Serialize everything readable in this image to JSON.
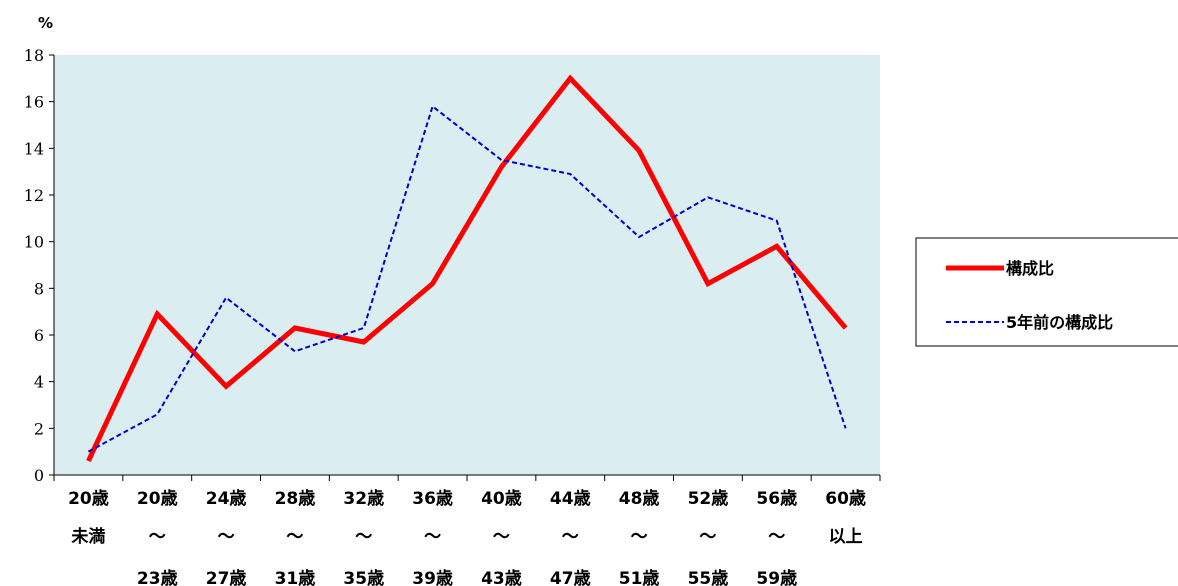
{
  "chart_data": {
    "type": "line",
    "ylabel": "%",
    "ylim": [
      0,
      18
    ],
    "yticks": [
      "0",
      "2",
      "4",
      "6",
      "8",
      "10",
      "12",
      "14",
      "16",
      "18"
    ],
    "categories": [
      [
        "20歳",
        "未満",
        ""
      ],
      [
        "20歳",
        "〜",
        "23歳"
      ],
      [
        "24歳",
        "〜",
        "27歳"
      ],
      [
        "28歳",
        "〜",
        "31歳"
      ],
      [
        "32歳",
        "〜",
        "35歳"
      ],
      [
        "36歳",
        "〜",
        "39歳"
      ],
      [
        "40歳",
        "〜",
        "43歳"
      ],
      [
        "44歳",
        "〜",
        "47歳"
      ],
      [
        "48歳",
        "〜",
        "51歳"
      ],
      [
        "52歳",
        "〜",
        "55歳"
      ],
      [
        "56歳",
        "〜",
        "59歳"
      ],
      [
        "60歳",
        "以上",
        ""
      ]
    ],
    "series": [
      {
        "name": "構成比",
        "color": "#ff0000",
        "style": "solid",
        "values": [
          0.6,
          6.9,
          3.8,
          6.3,
          5.7,
          8.2,
          13.2,
          17.0,
          13.9,
          8.2,
          9.8,
          6.3
        ]
      },
      {
        "name": "5年前の構成比",
        "color": "#0000cc",
        "style": "dashed",
        "values": [
          1.0,
          2.6,
          7.6,
          5.3,
          6.3,
          15.8,
          13.5,
          12.9,
          10.2,
          11.9,
          10.9,
          2.0
        ]
      }
    ],
    "plot_background": "#daedf1",
    "grid": false,
    "legend_position": "right"
  }
}
